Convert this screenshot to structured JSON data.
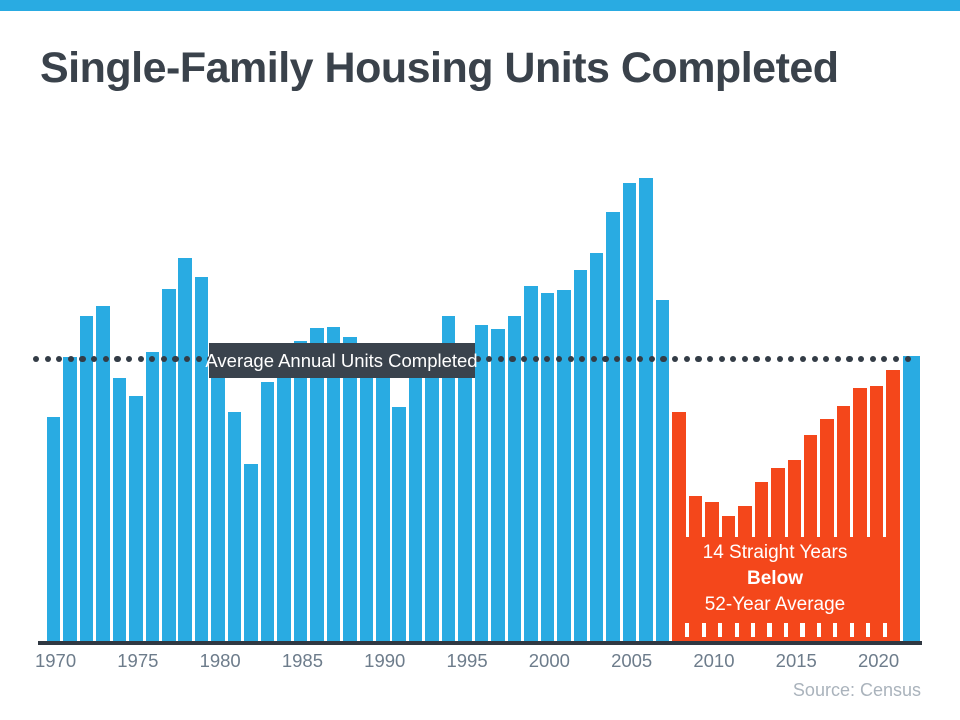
{
  "page": {
    "title": "Single-Family Housing Units Completed",
    "source_note": "Source: Census"
  },
  "colors": {
    "accent_strip": "#29abe2",
    "bar_blue": "#29abe2",
    "bar_orange": "#f4471b",
    "label_box_bg": "#3a434d",
    "dotted_line": "#333c46",
    "baseline": "#2f3842",
    "title_text": "#3a424b",
    "axis_label_text": "#6d7c8b",
    "source_text": "#aab3bc",
    "annotation_text": "#ffffff"
  },
  "chart_data": {
    "type": "bar",
    "title": "Single-Family Housing Units Completed",
    "unit": "thousands of single-family housing units completed per year (estimated from chart)",
    "x_tick_labels": [
      "1970",
      "1975",
      "1980",
      "1985",
      "1990",
      "1995",
      "2000",
      "2005",
      "2010",
      "2015",
      "2020"
    ],
    "years": [
      1970,
      1971,
      1972,
      1973,
      1974,
      1975,
      1976,
      1977,
      1978,
      1979,
      1980,
      1981,
      1982,
      1983,
      1984,
      1985,
      1986,
      1987,
      1988,
      1989,
      1990,
      1991,
      1992,
      1993,
      1994,
      1995,
      1996,
      1997,
      1998,
      1999,
      2000,
      2001,
      2002,
      2003,
      2004,
      2005,
      2006,
      2007,
      2008,
      2009,
      2010,
      2011,
      2012,
      2013,
      2014,
      2015,
      2016,
      2017,
      2018,
      2019,
      2020,
      2021,
      2022
    ],
    "values": [
      802,
      1014,
      1160,
      1197,
      940,
      875,
      1034,
      1258,
      1369,
      1301,
      957,
      819,
      632,
      924,
      1025,
      1072,
      1120,
      1123,
      1085,
      1026,
      966,
      838,
      964,
      1039,
      1160,
      1066,
      1129,
      1116,
      1160,
      1270,
      1242,
      1256,
      1325,
      1386,
      1532,
      1636,
      1654,
      1218,
      819,
      520,
      496,
      447,
      483,
      569,
      620,
      648,
      738,
      795,
      840,
      903,
      912,
      970,
      1018
    ],
    "ylim": [
      0,
      1700
    ],
    "grid": "off",
    "average_line": {
      "label": "Average Annual Units Completed",
      "value": 1009,
      "style": "dotted"
    },
    "highlight": {
      "start_year": 2008,
      "end_year": 2021,
      "lines": [
        "14 Straight Years",
        "Below",
        "52-Year Average"
      ]
    }
  }
}
